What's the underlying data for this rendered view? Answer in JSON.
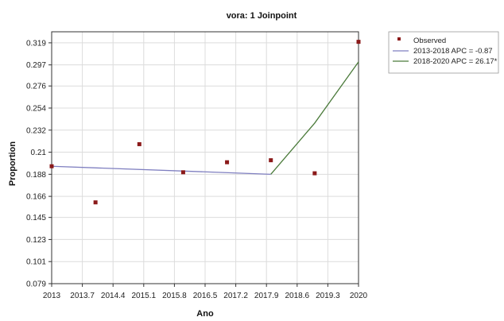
{
  "chart_data": {
    "type": "scatter",
    "title": "vora: 1 Joinpoint",
    "xlabel": "Ano",
    "ylabel": "Proportion",
    "xlim": [
      2013,
      2020
    ],
    "ylim": [
      0.079,
      0.33
    ],
    "x_ticks": [
      "2013",
      "2013.7",
      "2014.4",
      "2015.1",
      "2015.8",
      "2016.5",
      "2017.2",
      "2017.9",
      "2018.6",
      "2019.3",
      "2020"
    ],
    "y_ticks": [
      "0.079",
      "0.101",
      "0.123",
      "0.145",
      "0.166",
      "0.188",
      "0.21",
      "0.232",
      "0.254",
      "0.276",
      "0.297",
      "0.319"
    ],
    "grid": true,
    "legend_position": "right",
    "observed": {
      "name": "Observed",
      "color": "#8b1a1a",
      "points": [
        {
          "x": 2013,
          "y": 0.196
        },
        {
          "x": 2014,
          "y": 0.16
        },
        {
          "x": 2015,
          "y": 0.218
        },
        {
          "x": 2016,
          "y": 0.19
        },
        {
          "x": 2017,
          "y": 0.2
        },
        {
          "x": 2018,
          "y": 0.202
        },
        {
          "x": 2019,
          "y": 0.189
        },
        {
          "x": 2020,
          "y": 0.32
        }
      ]
    },
    "series": [
      {
        "name": "2013-2018 APC  =  -0.87",
        "color": "#7f7fc0",
        "x": [
          2013,
          2018
        ],
        "y": [
          0.196,
          0.188
        ]
      },
      {
        "name": "2018-2020 APC  =  26.17*",
        "color": "#4a7a3a",
        "x": [
          2018,
          2019,
          2020
        ],
        "y": [
          0.188,
          0.239,
          0.3
        ]
      }
    ]
  }
}
